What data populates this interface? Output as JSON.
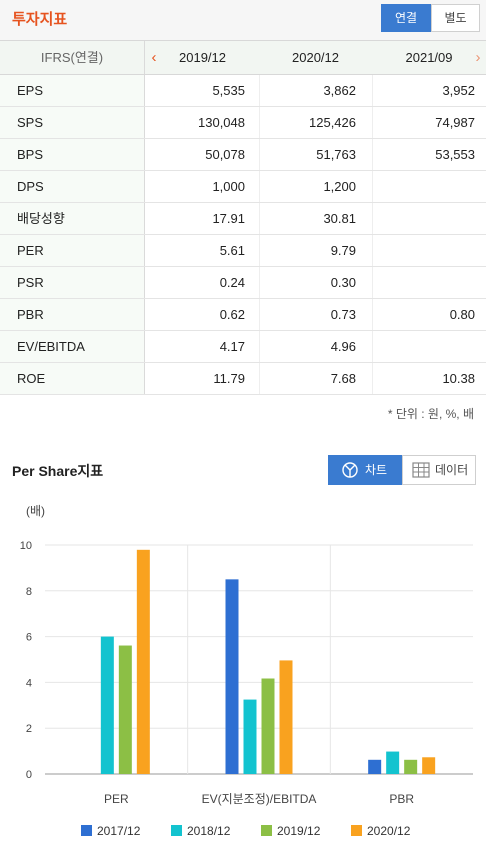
{
  "header": {
    "title": "투자지표",
    "toggle": [
      "연결",
      "별도"
    ]
  },
  "table": {
    "basis_label": "IFRS(연결)",
    "columns": [
      "2019/12",
      "2020/12",
      "2021/09"
    ],
    "prev_arrow": "‹",
    "next_arrow": "›",
    "rows": [
      {
        "label": "EPS",
        "values": [
          "5,535",
          "3,862",
          "3,952"
        ]
      },
      {
        "label": "SPS",
        "values": [
          "130,048",
          "125,426",
          "74,987"
        ]
      },
      {
        "label": "BPS",
        "values": [
          "50,078",
          "51,763",
          "53,553"
        ]
      },
      {
        "label": "DPS",
        "values": [
          "1,000",
          "1,200",
          ""
        ]
      },
      {
        "label": "배당성향",
        "values": [
          "17.91",
          "30.81",
          ""
        ]
      },
      {
        "label": "PER",
        "values": [
          "5.61",
          "9.79",
          ""
        ]
      },
      {
        "label": "PSR",
        "values": [
          "0.24",
          "0.30",
          ""
        ]
      },
      {
        "label": "PBR",
        "values": [
          "0.62",
          "0.73",
          "0.80"
        ]
      },
      {
        "label": "EV/EBITDA",
        "values": [
          "4.17",
          "4.96",
          ""
        ]
      },
      {
        "label": "ROE",
        "values": [
          "11.79",
          "7.68",
          "10.38"
        ]
      }
    ],
    "unit_note": "* 단위 : 원, %, 배"
  },
  "chart_section": {
    "title": "Per Share지표",
    "chart_button": "차트",
    "data_button": "데이터",
    "chart_icon": "pie-chart-icon",
    "data_icon": "grid-table-icon"
  },
  "chart_data": {
    "type": "bar",
    "ylabel": "(배)",
    "ylim": [
      0,
      10
    ],
    "yticks": [
      0,
      2,
      4,
      6,
      8,
      10
    ],
    "grid": true,
    "legend_position": "bottom",
    "categories": [
      "PER",
      "EV(지분조정)/EBITDA",
      "PBR"
    ],
    "series": [
      {
        "name": "2017/12",
        "color": "#2e6fd2",
        "values": [
          null,
          8.5,
          0.62
        ]
      },
      {
        "name": "2018/12",
        "color": "#13c3cf",
        "values": [
          6.0,
          3.25,
          0.98
        ]
      },
      {
        "name": "2019/12",
        "color": "#8cbf45",
        "values": [
          5.61,
          4.17,
          0.62
        ]
      },
      {
        "name": "2020/12",
        "color": "#f9a21f",
        "values": [
          9.79,
          4.96,
          0.73
        ]
      }
    ]
  }
}
